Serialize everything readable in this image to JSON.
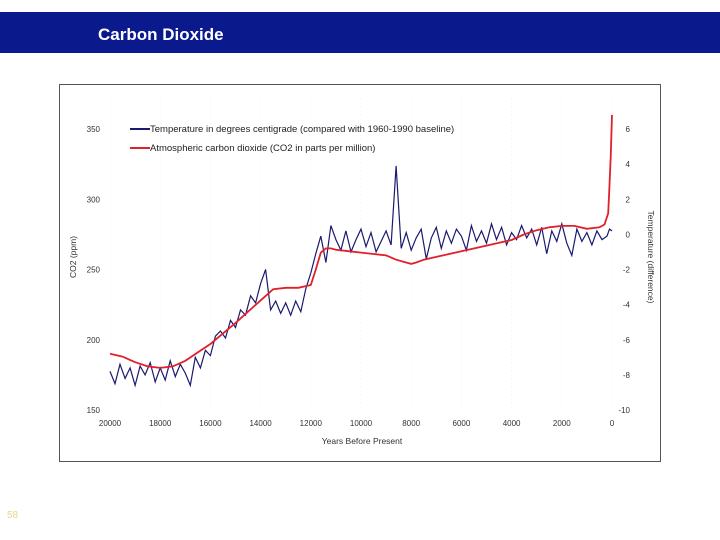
{
  "header": {
    "title": "Carbon Dioxide"
  },
  "footer": {
    "slide_number": "58"
  },
  "colors": {
    "header_bg": "#0a1a8c",
    "co2_line": "#e0202a",
    "temp_line": "#1a1a6e"
  },
  "chart_data": {
    "type": "line",
    "xlabel": "Years Before Present",
    "ylabel": "CO2 (ppm)",
    "y2label": "Temperature (difference)",
    "xlim": [
      20000,
      0
    ],
    "ylim": [
      150,
      350
    ],
    "y2lim": [
      -10,
      6
    ],
    "x_ticks": [
      "20000",
      "18000",
      "16000",
      "14000",
      "12000",
      "10000",
      "8000",
      "6000",
      "4000",
      "2000",
      "0"
    ],
    "y_ticks": [
      "350",
      "300",
      "250",
      "200",
      "150"
    ],
    "y2_ticks": [
      "6",
      "4",
      "2",
      "0",
      "-2",
      "-4",
      "-6",
      "-8",
      "-10"
    ],
    "series": [
      {
        "name": "Temperature in degrees centigrade (compared with 1960-1990 baseline)",
        "axis": "right",
        "x": [
          20000,
          19800,
          19600,
          19400,
          19200,
          19000,
          18800,
          18600,
          18400,
          18200,
          18000,
          17800,
          17600,
          17400,
          17200,
          17000,
          16800,
          16600,
          16400,
          16200,
          16000,
          15800,
          15600,
          15400,
          15200,
          15000,
          14800,
          14600,
          14400,
          14200,
          14000,
          13800,
          13600,
          13400,
          13200,
          13000,
          12800,
          12600,
          12400,
          12200,
          12000,
          11800,
          11600,
          11400,
          11200,
          11000,
          10800,
          10600,
          10400,
          10200,
          10000,
          9800,
          9600,
          9400,
          9200,
          9000,
          8800,
          8600,
          8400,
          8200,
          8000,
          7800,
          7600,
          7400,
          7200,
          7000,
          6800,
          6600,
          6400,
          6200,
          6000,
          5800,
          5600,
          5400,
          5200,
          5000,
          4800,
          4600,
          4400,
          4200,
          4000,
          3800,
          3600,
          3400,
          3200,
          3000,
          2800,
          2600,
          2400,
          2200,
          2000,
          1800,
          1600,
          1400,
          1200,
          1000,
          800,
          600,
          400,
          200,
          100,
          0
        ],
        "values": [
          -7.8,
          -8.5,
          -7.4,
          -8.2,
          -7.6,
          -8.6,
          -7.5,
          -8.0,
          -7.3,
          -8.4,
          -7.6,
          -8.3,
          -7.2,
          -8.1,
          -7.4,
          -7.9,
          -8.6,
          -7.0,
          -7.6,
          -6.6,
          -6.9,
          -5.8,
          -5.5,
          -5.9,
          -4.9,
          -5.3,
          -4.3,
          -4.6,
          -3.5,
          -3.9,
          -2.8,
          -2.0,
          -4.3,
          -3.8,
          -4.5,
          -3.9,
          -4.6,
          -3.8,
          -4.4,
          -3.1,
          -2.2,
          -1.1,
          -0.1,
          -1.6,
          0.5,
          -0.3,
          -0.9,
          0.2,
          -1.0,
          -0.3,
          0.3,
          -0.7,
          0.1,
          -1.0,
          -0.4,
          0.2,
          -0.6,
          3.9,
          -0.8,
          0.1,
          -0.9,
          -0.2,
          0.3,
          -1.4,
          -0.2,
          0.4,
          -0.8,
          0.2,
          -0.5,
          0.3,
          -0.1,
          -0.9,
          0.5,
          -0.4,
          0.2,
          -0.5,
          0.6,
          -0.3,
          0.4,
          -0.6,
          0.1,
          -0.3,
          0.5,
          -0.2,
          0.3,
          -0.6,
          0.4,
          -1.1,
          0.2,
          -0.4,
          0.6,
          -0.5,
          -1.2,
          0.3,
          -0.4,
          0.1,
          -0.6,
          0.2,
          -0.3,
          -0.1,
          0.3,
          0.2
        ]
      },
      {
        "name": "Atmospheric carbon dioxide (CO2 in parts per million)",
        "axis": "left",
        "x": [
          20000,
          19500,
          19000,
          18500,
          18000,
          17500,
          17000,
          16500,
          16000,
          15000,
          14000,
          13500,
          13000,
          12500,
          12000,
          11800,
          11600,
          11400,
          11200,
          11000,
          10500,
          10000,
          9500,
          9000,
          8600,
          8200,
          8000,
          7800,
          7500,
          7000,
          6000,
          5000,
          4500,
          4000,
          3500,
          3000,
          2500,
          2000,
          1500,
          1000,
          500,
          300,
          150,
          100,
          50,
          0
        ],
        "values": [
          190,
          188,
          184,
          181,
          180,
          181,
          185,
          191,
          197,
          212,
          228,
          236,
          237,
          237,
          239,
          250,
          262,
          265,
          265,
          264,
          263,
          262,
          261,
          260,
          257,
          255,
          254,
          255,
          257,
          259,
          263,
          267,
          269,
          271,
          275,
          278,
          280,
          281,
          281,
          279,
          280,
          282,
          290,
          310,
          330,
          360
        ]
      }
    ]
  }
}
